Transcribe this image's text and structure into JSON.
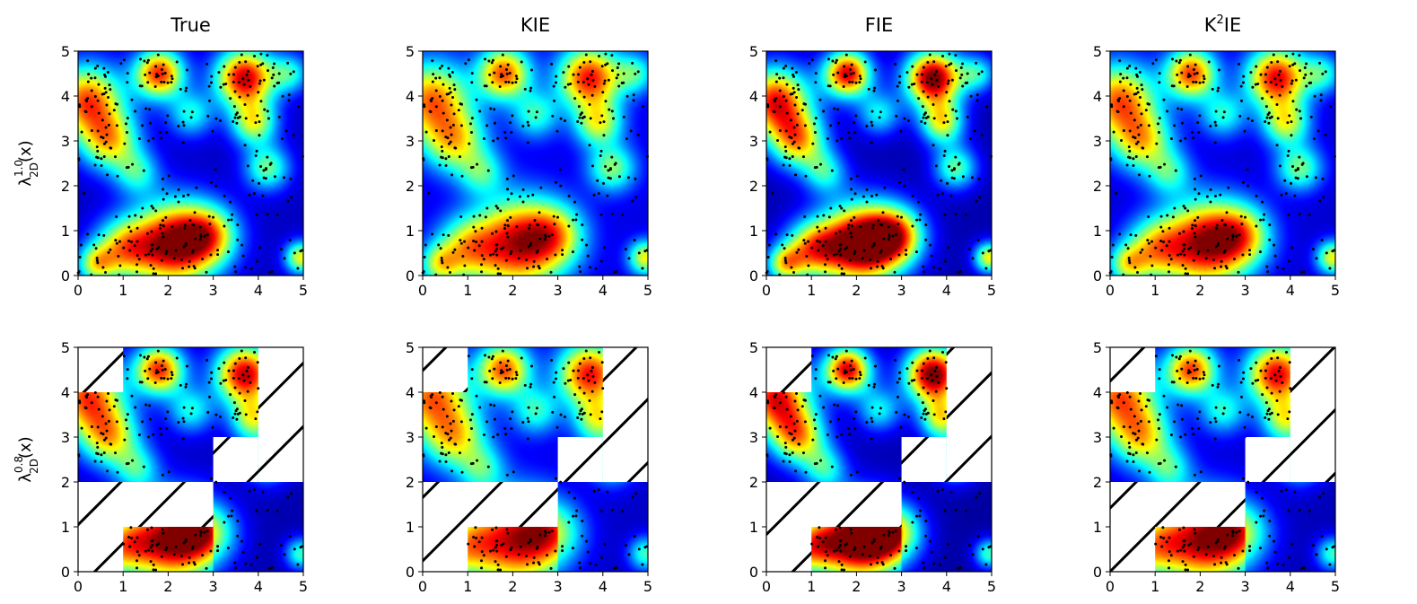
{
  "chart_data": {
    "type": "heatmap",
    "columns": [
      {
        "key": "true",
        "title_main": "True",
        "title_sup": ""
      },
      {
        "key": "kie",
        "title_main": "KIE",
        "title_sup": ""
      },
      {
        "key": "fie",
        "title_main": "FIE",
        "title_sup": ""
      },
      {
        "key": "k2ie",
        "title_main": "K",
        "title_sup": "2",
        "title_tail": "IE"
      }
    ],
    "rows": [
      {
        "key": "full",
        "label_main": "λ",
        "label_sub": "2D",
        "label_sup": "1.0",
        "label_tail": "(x)"
      },
      {
        "key": "masked",
        "label_main": "λ",
        "label_sub": "2D",
        "label_sup": "0.8",
        "label_tail": "(x)"
      }
    ],
    "xlim": [
      0,
      5
    ],
    "ylim": [
      0,
      5
    ],
    "x_ticks": [
      0,
      1,
      2,
      3,
      4,
      5
    ],
    "y_ticks": [
      0,
      1,
      2,
      3,
      4,
      5
    ],
    "colormap": "jet",
    "point_color": "#000000",
    "hatch_color": "#000000",
    "masked_regions_row2": [
      {
        "x": [
          0,
          1
        ],
        "y": [
          4,
          5
        ]
      },
      {
        "x": [
          4,
          5
        ],
        "y": [
          2,
          5
        ]
      },
      {
        "x": [
          3,
          4
        ],
        "y": [
          2,
          3
        ]
      },
      {
        "x": [
          0,
          3
        ],
        "y": [
          1,
          2
        ]
      },
      {
        "x": [
          0,
          1
        ],
        "y": [
          0,
          1
        ]
      },
      {
        "x": [
          3,
          5
        ],
        "y": [
          0,
          2
        ],
        "hatched": false
      }
    ]
  }
}
